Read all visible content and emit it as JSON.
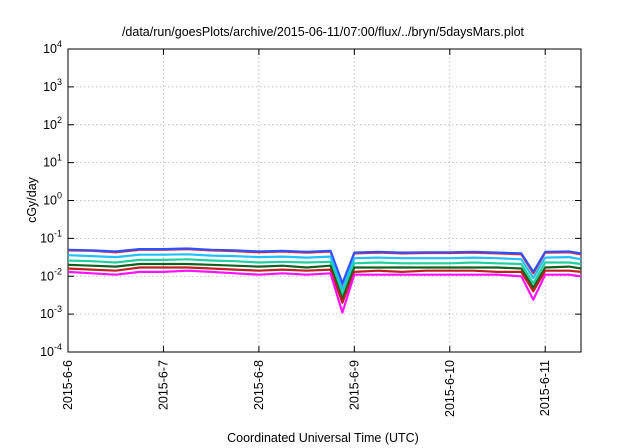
{
  "chart_data": {
    "type": "line",
    "title": "/data/run/goesPlots/archive/2015-06-11/07:00/flux/../bryn/5daysMars.plot",
    "xlabel": "Coordinated Universal Time (UTC)",
    "ylabel": "cGy/day",
    "yscale": "log",
    "ylim": [
      0.0001,
      10000
    ],
    "xlim": [
      "2015-06-06 00:00",
      "2015-06-11 09:00"
    ],
    "grid": true,
    "y_ticks": [
      {
        "base": "10",
        "exp": "-4",
        "value": 0.0001
      },
      {
        "base": "10",
        "exp": "-3",
        "value": 0.001
      },
      {
        "base": "10",
        "exp": "-2",
        "value": 0.01
      },
      {
        "base": "10",
        "exp": "-1",
        "value": 0.1
      },
      {
        "base": "10",
        "exp": "0",
        "value": 1
      },
      {
        "base": "10",
        "exp": "1",
        "value": 10
      },
      {
        "base": "10",
        "exp": "2",
        "value": 100
      },
      {
        "base": "10",
        "exp": "3",
        "value": 1000
      },
      {
        "base": "10",
        "exp": "4",
        "value": 10000
      }
    ],
    "x_ticks": [
      {
        "label": "2015-6-6",
        "date": "2015-06-06"
      },
      {
        "label": "2015-6-7",
        "date": "2015-06-07"
      },
      {
        "label": "2015-6-8",
        "date": "2015-06-08"
      },
      {
        "label": "2015-6-9",
        "date": "2015-06-09"
      },
      {
        "label": "2015-6-10",
        "date": "2015-06-10"
      },
      {
        "label": "2015-6-11",
        "date": "2015-06-11"
      }
    ],
    "x": [
      "2015-06-06 00:00",
      "2015-06-06 06:00",
      "2015-06-06 12:00",
      "2015-06-06 18:00",
      "2015-06-07 00:00",
      "2015-06-07 06:00",
      "2015-06-07 12:00",
      "2015-06-07 18:00",
      "2015-06-08 00:00",
      "2015-06-08 06:00",
      "2015-06-08 12:00",
      "2015-06-08 18:00",
      "2015-06-08 21:00",
      "2015-06-09 00:00",
      "2015-06-09 06:00",
      "2015-06-09 12:00",
      "2015-06-09 18:00",
      "2015-06-10 00:00",
      "2015-06-10 06:00",
      "2015-06-10 12:00",
      "2015-06-10 18:00",
      "2015-06-10 21:00",
      "2015-06-11 00:00",
      "2015-06-11 06:00",
      "2015-06-11 09:00"
    ],
    "series": [
      {
        "color": "#ff2020",
        "values": [
          0.048,
          0.047,
          0.043,
          0.05,
          0.05,
          0.052,
          0.048,
          0.046,
          0.043,
          0.045,
          0.042,
          0.045,
          0.006,
          0.04,
          0.042,
          0.04,
          0.041,
          0.041,
          0.042,
          0.04,
          0.038,
          0.012,
          0.042,
          0.043,
          0.038
        ]
      },
      {
        "color": "#3050ff",
        "values": [
          0.05,
          0.048,
          0.045,
          0.052,
          0.052,
          0.054,
          0.05,
          0.048,
          0.045,
          0.047,
          0.044,
          0.047,
          0.0065,
          0.042,
          0.044,
          0.042,
          0.043,
          0.043,
          0.044,
          0.042,
          0.04,
          0.013,
          0.044,
          0.045,
          0.04
        ]
      },
      {
        "color": "#20c0ff",
        "values": [
          0.036,
          0.034,
          0.032,
          0.037,
          0.037,
          0.038,
          0.035,
          0.034,
          0.032,
          0.033,
          0.031,
          0.033,
          0.0045,
          0.03,
          0.031,
          0.03,
          0.03,
          0.03,
          0.031,
          0.03,
          0.028,
          0.009,
          0.031,
          0.032,
          0.028
        ]
      },
      {
        "color": "#20d0a0",
        "values": [
          0.026,
          0.025,
          0.023,
          0.027,
          0.027,
          0.028,
          0.026,
          0.025,
          0.023,
          0.024,
          0.023,
          0.024,
          0.0033,
          0.022,
          0.023,
          0.022,
          0.022,
          0.022,
          0.023,
          0.022,
          0.021,
          0.0065,
          0.023,
          0.023,
          0.021
        ]
      },
      {
        "color": "#106020",
        "values": [
          0.02,
          0.019,
          0.018,
          0.021,
          0.021,
          0.021,
          0.02,
          0.019,
          0.018,
          0.019,
          0.017,
          0.019,
          0.0025,
          0.017,
          0.017,
          0.017,
          0.017,
          0.017,
          0.017,
          0.017,
          0.016,
          0.005,
          0.017,
          0.018,
          0.016
        ]
      },
      {
        "color": "#c02020",
        "values": [
          0.016,
          0.015,
          0.014,
          0.017,
          0.017,
          0.017,
          0.016,
          0.015,
          0.014,
          0.015,
          0.014,
          0.015,
          0.002,
          0.013,
          0.014,
          0.013,
          0.014,
          0.014,
          0.014,
          0.013,
          0.013,
          0.004,
          0.014,
          0.014,
          0.013
        ]
      },
      {
        "color": "#ff10ff",
        "values": [
          0.013,
          0.012,
          0.011,
          0.013,
          0.013,
          0.014,
          0.013,
          0.012,
          0.011,
          0.012,
          0.011,
          0.012,
          0.0011,
          0.011,
          0.011,
          0.011,
          0.011,
          0.011,
          0.011,
          0.011,
          0.01,
          0.0024,
          0.011,
          0.011,
          0.01
        ]
      }
    ]
  }
}
